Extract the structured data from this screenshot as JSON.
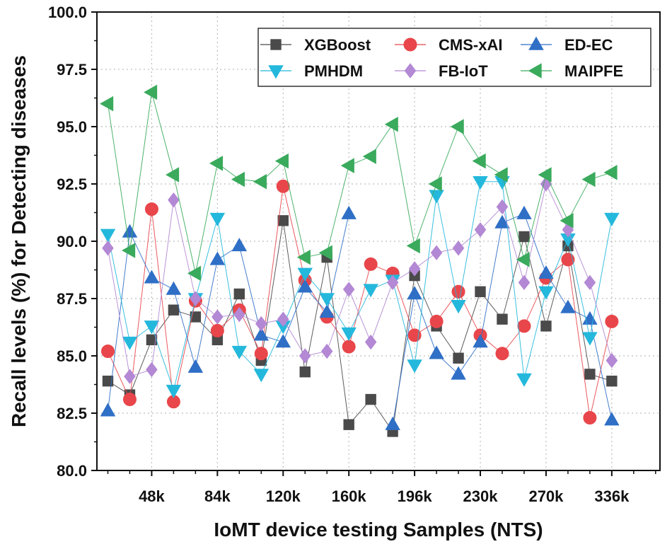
{
  "chart_data": {
    "type": "line",
    "title": "",
    "xlabel": "IoMT device testing Samples (NTS)",
    "ylabel": "Recall levels (%) for Detecting diseases",
    "ylim": [
      80.0,
      100.0
    ],
    "xlim": [
      -0.5,
      25.2
    ],
    "yticks": [
      "80.0",
      "82.5",
      "85.0",
      "87.5",
      "90.0",
      "92.5",
      "95.0",
      "97.5",
      "100.0"
    ],
    "ytick_values": [
      80.0,
      82.5,
      85.0,
      87.5,
      90.0,
      92.5,
      95.0,
      97.5,
      100.0
    ],
    "xticks": [
      "48k",
      "84k",
      "120k",
      "160k",
      "196k",
      "230k",
      "270k",
      "336k"
    ],
    "xtick_positions": [
      2,
      5,
      8,
      11,
      14,
      17,
      20,
      23
    ],
    "grid": true,
    "legend_position": "top-right",
    "series": [
      {
        "name": "XGBoost",
        "marker": "square",
        "color": "#4a4a4a",
        "values": [
          83.9,
          83.3,
          85.7,
          87.0,
          86.7,
          85.7,
          87.7,
          84.8,
          90.9,
          84.3,
          89.3,
          82.0,
          83.1,
          81.7,
          88.5,
          86.3,
          84.9,
          87.8,
          86.6,
          90.2,
          86.3,
          89.8,
          84.2,
          83.9
        ]
      },
      {
        "name": "CMS-xAI",
        "marker": "circle",
        "color": "#e8464b",
        "values": [
          85.2,
          83.1,
          91.4,
          83.0,
          87.4,
          86.1,
          87.0,
          85.1,
          92.4,
          88.3,
          86.7,
          85.4,
          89.0,
          88.6,
          85.9,
          86.5,
          87.8,
          85.9,
          85.1,
          86.3,
          88.4,
          89.2,
          82.3,
          86.5
        ]
      },
      {
        "name": "ED-EC",
        "marker": "triangle-up",
        "color": "#2f6fc6",
        "values": [
          82.6,
          90.4,
          88.4,
          87.9,
          84.5,
          89.2,
          89.8,
          85.9,
          85.6,
          88.0,
          86.9,
          91.2,
          null,
          82.0,
          87.7,
          85.1,
          84.2,
          85.6,
          90.8,
          91.2,
          88.6,
          87.1,
          86.6,
          82.2
        ]
      },
      {
        "name": "PMHDM",
        "marker": "triangle-down",
        "color": "#24b8dc",
        "values": [
          90.3,
          85.6,
          86.3,
          83.5,
          87.5,
          91.0,
          85.2,
          84.2,
          86.3,
          88.6,
          87.5,
          86.0,
          87.9,
          88.3,
          84.6,
          92.0,
          87.2,
          92.6,
          92.6,
          84.0,
          87.8,
          90.1,
          85.8,
          91.0
        ]
      },
      {
        "name": "FB-IoT",
        "marker": "diamond",
        "color": "#b388d4",
        "values": [
          89.7,
          84.1,
          84.4,
          91.8,
          87.5,
          86.7,
          86.8,
          86.4,
          86.6,
          85.0,
          85.2,
          87.9,
          85.6,
          88.2,
          88.8,
          89.5,
          89.7,
          90.5,
          91.5,
          88.2,
          92.5,
          90.5,
          88.2,
          84.8
        ]
      },
      {
        "name": "MAIPFE",
        "marker": "triangle-left",
        "color": "#3aaa5c",
        "values": [
          96.0,
          89.6,
          96.5,
          92.9,
          88.6,
          93.4,
          92.7,
          92.6,
          93.5,
          89.3,
          89.5,
          93.3,
          93.7,
          95.1,
          89.8,
          92.5,
          95.0,
          93.5,
          92.9,
          89.2,
          92.9,
          90.9,
          92.7,
          93.0
        ]
      }
    ]
  }
}
